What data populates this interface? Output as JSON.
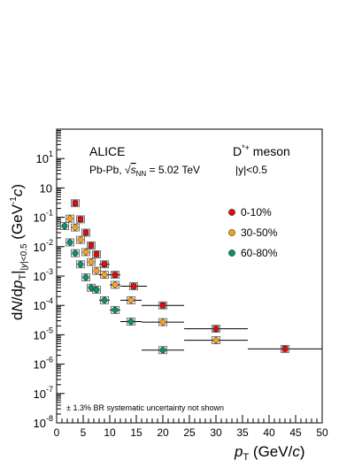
{
  "chart_data": {
    "type": "scatter",
    "y_scale": "log",
    "xlabel_main": "p",
    "xlabel_sub": "T",
    "xlabel_unit": " (GeV/",
    "xlabel_unit_c": "c",
    "xlabel_close": ")",
    "ylabel": "dN/dp_T |_{|y|<0.5} (GeV^{-1}c)",
    "xlim": [
      0,
      50
    ],
    "ylim": [
      1e-08,
      100
    ],
    "x_ticks": [
      "0",
      "5",
      "10",
      "15",
      "20",
      "25",
      "30",
      "35",
      "40",
      "45",
      "50"
    ],
    "y_tick_mantissa": "10",
    "y_tick_exponents": [
      "-8",
      "-7",
      "-6",
      "-5",
      "-4",
      "-3",
      "-2",
      "-1",
      "",
      "1"
    ],
    "annotations": {
      "experiment": "ALICE",
      "system_prefix": "Pb-Pb, ",
      "system_energy": "= 5.02 TeV",
      "particle": "D",
      "particle_sup": "*+",
      "particle_suffix": " meson",
      "rapidity": "|y|<0.5",
      "footnote": "± 1.3% BR systematic uncertainty not shown"
    },
    "legend_position": "right",
    "series": [
      {
        "name": "0-10%",
        "color": "#d91010",
        "marker": "square",
        "x": [
          3.5,
          4.5,
          5.5,
          6.5,
          7.5,
          9,
          11,
          14.5,
          20,
          30,
          43
        ],
        "xerr": [
          0.5,
          0.5,
          0.5,
          0.5,
          0.5,
          1,
          1,
          2.5,
          4,
          6,
          7
        ],
        "y": [
          0.3,
          0.085,
          0.03,
          0.011,
          0.0055,
          0.0025,
          0.0011,
          0.00045,
          0.0001,
          1.6e-05,
          3.3e-06
        ]
      },
      {
        "name": "30-50%",
        "color": "#f5a020",
        "marker": "circle",
        "x": [
          2.5,
          3.5,
          4.5,
          5.5,
          6.5,
          7.5,
          9,
          11,
          14,
          20,
          30
        ],
        "xerr": [
          0.5,
          0.5,
          0.5,
          0.5,
          0.5,
          0.5,
          1,
          1,
          2,
          4,
          6
        ],
        "y": [
          0.09,
          0.045,
          0.017,
          0.0065,
          0.003,
          0.0015,
          0.0011,
          0.0005,
          0.00015,
          2.7e-05,
          6.5e-06
        ]
      },
      {
        "name": "60-80%",
        "color": "#0f8f6a",
        "marker": "circle",
        "x": [
          1.5,
          2.5,
          3.5,
          4.5,
          5.5,
          6.5,
          7.5,
          9,
          11,
          14,
          20
        ],
        "xerr": [
          0.5,
          0.5,
          0.5,
          0.5,
          0.5,
          0.5,
          0.5,
          1,
          1,
          2,
          4
        ],
        "y": [
          0.05,
          0.014,
          0.006,
          0.0025,
          0.0009,
          0.0004,
          0.00034,
          0.00015,
          7e-05,
          2.8e-05,
          3e-06
        ]
      }
    ]
  }
}
